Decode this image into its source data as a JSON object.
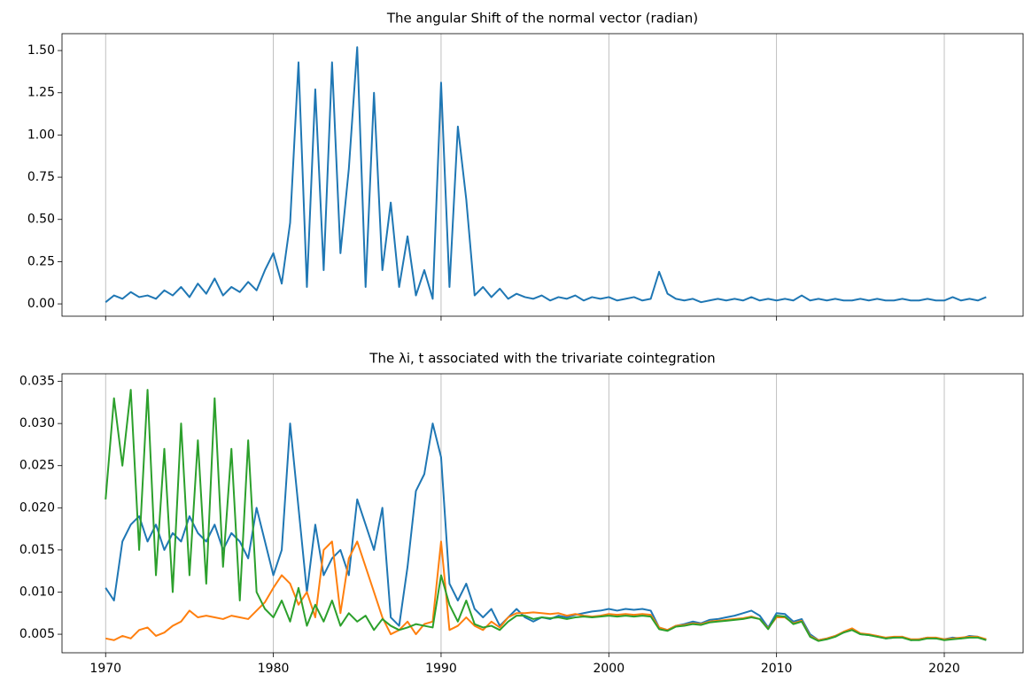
{
  "chart_data": [
    {
      "type": "line",
      "title": "The angular Shift of the normal vector (radian)",
      "x": [
        1970,
        1970.5,
        1971,
        1971.5,
        1972,
        1972.5,
        1973,
        1973.5,
        1974,
        1974.5,
        1975,
        1975.5,
        1976,
        1976.5,
        1977,
        1977.5,
        1978,
        1978.5,
        1979,
        1979.5,
        1980,
        1980.5,
        1981,
        1981.5,
        1982,
        1982.5,
        1983,
        1983.5,
        1984,
        1984.5,
        1985,
        1985.5,
        1986,
        1986.5,
        1987,
        1987.5,
        1988,
        1988.5,
        1989,
        1989.5,
        1990,
        1990.5,
        1991,
        1991.5,
        1992,
        1992.5,
        1993,
        1993.5,
        1994,
        1994.5,
        1995,
        1995.5,
        1996,
        1996.5,
        1997,
        1997.5,
        1998,
        1998.5,
        1999,
        1999.5,
        2000,
        2000.5,
        2001,
        2001.5,
        2002,
        2002.5,
        2003,
        2003.5,
        2004,
        2004.5,
        2005,
        2005.5,
        2006,
        2006.5,
        2007,
        2007.5,
        2008,
        2008.5,
        2009,
        2009.5,
        2010,
        2010.5,
        2011,
        2011.5,
        2012,
        2012.5,
        2013,
        2013.5,
        2014,
        2014.5,
        2015,
        2015.5,
        2016,
        2016.5,
        2017,
        2017.5,
        2018,
        2018.5,
        2019,
        2019.5,
        2020,
        2020.5,
        2021,
        2021.5,
        2022,
        2022.5
      ],
      "series": [
        {
          "color": "#1f77b4",
          "values": [
            0.01,
            0.05,
            0.03,
            0.07,
            0.04,
            0.05,
            0.03,
            0.08,
            0.05,
            0.1,
            0.04,
            0.12,
            0.06,
            0.15,
            0.05,
            0.1,
            0.07,
            0.13,
            0.08,
            0.2,
            0.3,
            0.12,
            0.48,
            1.43,
            0.1,
            1.27,
            0.2,
            1.43,
            0.3,
            0.8,
            1.52,
            0.1,
            1.25,
            0.2,
            0.6,
            0.1,
            0.4,
            0.05,
            0.2,
            0.03,
            1.31,
            0.1,
            1.05,
            0.62,
            0.05,
            0.1,
            0.04,
            0.09,
            0.03,
            0.06,
            0.04,
            0.03,
            0.05,
            0.02,
            0.04,
            0.03,
            0.05,
            0.02,
            0.04,
            0.03,
            0.04,
            0.02,
            0.03,
            0.04,
            0.02,
            0.03,
            0.19,
            0.06,
            0.03,
            0.02,
            0.03,
            0.01,
            0.02,
            0.03,
            0.02,
            0.03,
            0.02,
            0.04,
            0.02,
            0.03,
            0.02,
            0.03,
            0.02,
            0.05,
            0.02,
            0.03,
            0.02,
            0.03,
            0.02,
            0.02,
            0.03,
            0.02,
            0.03,
            0.02,
            0.02,
            0.03,
            0.02,
            0.02,
            0.03,
            0.02,
            0.02,
            0.04,
            0.02,
            0.03,
            0.02,
            0.04
          ]
        }
      ],
      "xlim": [
        1967.4,
        2024.7
      ],
      "xticks": [
        1970,
        1980,
        1990,
        2000,
        2010,
        2020
      ],
      "ylim": [
        -0.073,
        1.6
      ],
      "yticks": [
        {
          "value": 0,
          "label": "0.00"
        },
        {
          "value": 0.25,
          "label": "0.25"
        },
        {
          "value": 0.5,
          "label": "0.50"
        },
        {
          "value": 0.75,
          "label": "0.75"
        },
        {
          "value": 1,
          "label": "1.00"
        },
        {
          "value": 1.25,
          "label": "1.25"
        },
        {
          "value": 1.5,
          "label": "1.50"
        }
      ],
      "grid": true
    },
    {
      "type": "line",
      "title": "The λi, t associated with the trivariate cointegration",
      "x": [
        1970,
        1970.5,
        1971,
        1971.5,
        1972,
        1972.5,
        1973,
        1973.5,
        1974,
        1974.5,
        1975,
        1975.5,
        1976,
        1976.5,
        1977,
        1977.5,
        1978,
        1978.5,
        1979,
        1979.5,
        1980,
        1980.5,
        1981,
        1981.5,
        1982,
        1982.5,
        1983,
        1983.5,
        1984,
        1984.5,
        1985,
        1985.5,
        1986,
        1986.5,
        1987,
        1987.5,
        1988,
        1988.5,
        1989,
        1989.5,
        1990,
        1990.5,
        1991,
        1991.5,
        1992,
        1992.5,
        1993,
        1993.5,
        1994,
        1994.5,
        1995,
        1995.5,
        1996,
        1996.5,
        1997,
        1997.5,
        1998,
        1998.5,
        1999,
        1999.5,
        2000,
        2000.5,
        2001,
        2001.5,
        2002,
        2002.5,
        2003,
        2003.5,
        2004,
        2004.5,
        2005,
        2005.5,
        2006,
        2006.5,
        2007,
        2007.5,
        2008,
        2008.5,
        2009,
        2009.5,
        2010,
        2010.5,
        2011,
        2011.5,
        2012,
        2012.5,
        2013,
        2013.5,
        2014,
        2014.5,
        2015,
        2015.5,
        2016,
        2016.5,
        2017,
        2017.5,
        2018,
        2018.5,
        2019,
        2019.5,
        2020,
        2020.5,
        2021,
        2021.5,
        2022,
        2022.5
      ],
      "series": [
        {
          "color": "#1f77b4",
          "values": [
            0.0105,
            0.009,
            0.016,
            0.018,
            0.019,
            0.016,
            0.018,
            0.015,
            0.017,
            0.016,
            0.019,
            0.017,
            0.016,
            0.018,
            0.015,
            0.017,
            0.016,
            0.014,
            0.02,
            0.016,
            0.012,
            0.015,
            0.03,
            0.02,
            0.01,
            0.018,
            0.012,
            0.014,
            0.015,
            0.012,
            0.021,
            0.018,
            0.015,
            0.02,
            0.007,
            0.006,
            0.013,
            0.022,
            0.024,
            0.03,
            0.026,
            0.011,
            0.009,
            0.011,
            0.008,
            0.007,
            0.008,
            0.006,
            0.007,
            0.008,
            0.007,
            0.0065,
            0.007,
            0.0068,
            0.0072,
            0.007,
            0.0073,
            0.0075,
            0.0077,
            0.0078,
            0.008,
            0.0078,
            0.008,
            0.0079,
            0.008,
            0.0078,
            0.0058,
            0.0055,
            0.006,
            0.0062,
            0.0065,
            0.0063,
            0.0067,
            0.0068,
            0.007,
            0.0072,
            0.0075,
            0.0078,
            0.0072,
            0.0058,
            0.0075,
            0.0074,
            0.0065,
            0.0068,
            0.005,
            0.0043,
            0.0045,
            0.0048,
            0.0052,
            0.0056,
            0.005,
            0.0049,
            0.0048,
            0.0045,
            0.0046,
            0.0047,
            0.0043,
            0.0044,
            0.0046,
            0.0045,
            0.0044,
            0.0046,
            0.0045,
            0.0048,
            0.0047,
            0.0043
          ]
        },
        {
          "color": "#ff7f0e",
          "values": [
            0.0045,
            0.0043,
            0.0048,
            0.0045,
            0.0055,
            0.0058,
            0.0048,
            0.0052,
            0.006,
            0.0065,
            0.0078,
            0.007,
            0.0072,
            0.007,
            0.0068,
            0.0072,
            0.007,
            0.0068,
            0.0078,
            0.0088,
            0.0105,
            0.012,
            0.011,
            0.0085,
            0.01,
            0.007,
            0.015,
            0.016,
            0.0075,
            0.014,
            0.016,
            0.013,
            0.01,
            0.007,
            0.005,
            0.0055,
            0.0065,
            0.005,
            0.0062,
            0.0065,
            0.016,
            0.0055,
            0.006,
            0.007,
            0.006,
            0.0055,
            0.0065,
            0.0058,
            0.007,
            0.0075,
            0.0075,
            0.0076,
            0.0075,
            0.0074,
            0.0075,
            0.0072,
            0.0074,
            0.0072,
            0.0071,
            0.0072,
            0.0074,
            0.0073,
            0.0074,
            0.0073,
            0.0074,
            0.0073,
            0.0058,
            0.0055,
            0.006,
            0.0061,
            0.0063,
            0.0062,
            0.0065,
            0.0066,
            0.0067,
            0.0068,
            0.0069,
            0.0071,
            0.0068,
            0.0057,
            0.007,
            0.007,
            0.0063,
            0.0066,
            0.0048,
            0.0043,
            0.0045,
            0.0048,
            0.0053,
            0.0057,
            0.0051,
            0.005,
            0.0048,
            0.0046,
            0.0047,
            0.0047,
            0.0044,
            0.0044,
            0.0046,
            0.0046,
            0.0044,
            0.0045,
            0.0046,
            0.0047,
            0.0047,
            0.0044
          ]
        },
        {
          "color": "#2ca02c",
          "values": [
            0.021,
            0.033,
            0.025,
            0.034,
            0.015,
            0.034,
            0.012,
            0.027,
            0.01,
            0.03,
            0.012,
            0.028,
            0.011,
            0.033,
            0.013,
            0.027,
            0.009,
            0.028,
            0.01,
            0.008,
            0.007,
            0.009,
            0.0065,
            0.0105,
            0.006,
            0.0085,
            0.0065,
            0.009,
            0.006,
            0.0075,
            0.0065,
            0.0072,
            0.0055,
            0.0068,
            0.006,
            0.0055,
            0.0058,
            0.0062,
            0.006,
            0.0058,
            0.012,
            0.0085,
            0.0065,
            0.009,
            0.0062,
            0.0058,
            0.006,
            0.0055,
            0.0065,
            0.0072,
            0.0072,
            0.0068,
            0.007,
            0.0069,
            0.007,
            0.0068,
            0.007,
            0.0071,
            0.007,
            0.0071,
            0.0072,
            0.0071,
            0.0072,
            0.0071,
            0.0072,
            0.0071,
            0.0056,
            0.0054,
            0.0059,
            0.006,
            0.0062,
            0.0061,
            0.0064,
            0.0065,
            0.0066,
            0.0067,
            0.0068,
            0.007,
            0.0068,
            0.0056,
            0.0072,
            0.0071,
            0.0062,
            0.0065,
            0.0047,
            0.0042,
            0.0044,
            0.0047,
            0.0052,
            0.0055,
            0.005,
            0.0049,
            0.0047,
            0.0045,
            0.0046,
            0.0046,
            0.0043,
            0.0043,
            0.0045,
            0.0045,
            0.0043,
            0.0044,
            0.0045,
            0.0046,
            0.0046,
            0.0043
          ]
        }
      ],
      "xlim": [
        1967.4,
        2024.7
      ],
      "xticks": [
        1970,
        1980,
        1990,
        2000,
        2010,
        2020
      ],
      "ylim": [
        0.0028,
        0.0359
      ],
      "yticks": [
        0.005,
        {
          "value": 0.01,
          "label": "0.010"
        },
        0.015,
        {
          "value": 0.02,
          "label": "0.020"
        },
        0.025,
        {
          "value": 0.03,
          "label": "0.030"
        },
        0.035
      ],
      "grid": true
    }
  ]
}
